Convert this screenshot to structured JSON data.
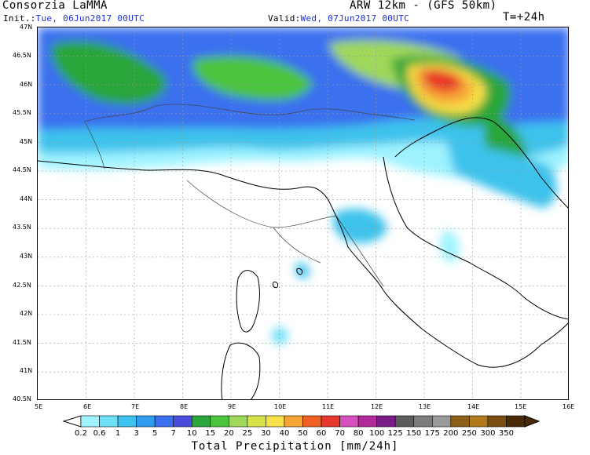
{
  "header": {
    "left_title": "Consorzia LaMMA",
    "right_title": "ARW 12km - (GFS 50km)",
    "init_label": "Init.:",
    "init_value": "Tue, 06Jun2017 00UTC",
    "valid_label": "Valid:",
    "valid_value": "Wed, 07Jun2017 00UTC",
    "lead_time": "T=+24h"
  },
  "map": {
    "lat_labels": [
      "47N",
      "46.5N",
      "46N",
      "45.5N",
      "45N",
      "44.5N",
      "44N",
      "43.5N",
      "43N",
      "42.5N",
      "42N",
      "41.5N",
      "41N",
      "40.5N"
    ],
    "lon_labels": [
      "5E",
      "6E",
      "7E",
      "8E",
      "9E",
      "10E",
      "11E",
      "12E",
      "13E",
      "14E",
      "15E",
      "16E"
    ],
    "lat_range": [
      40.5,
      47
    ],
    "lon_range": [
      5,
      16
    ]
  },
  "legend": {
    "title": "Total Precipitation [mm/24h]",
    "thresholds": [
      "0.2",
      "0.6",
      "1",
      "3",
      "5",
      "7",
      "10",
      "15",
      "20",
      "25",
      "30",
      "40",
      "50",
      "60",
      "70",
      "80",
      "100",
      "125",
      "150",
      "175",
      "200",
      "250",
      "300",
      "350"
    ],
    "colors": [
      "#9ff3ff",
      "#6ee0f5",
      "#3cc2ec",
      "#2f9cf0",
      "#3a70ef",
      "#4a4cdb",
      "#2aa63a",
      "#4cc43e",
      "#9fd85a",
      "#d6e44a",
      "#f7e04a",
      "#f5a536",
      "#f06022",
      "#e8382c",
      "#d84fc0",
      "#b2299a",
      "#7a1c86",
      "#5c5c5c",
      "#7c7c7c",
      "#9a9a9a",
      "#8a5f18",
      "#b07a1c",
      "#7a4e10",
      "#4a2a08"
    ]
  }
}
